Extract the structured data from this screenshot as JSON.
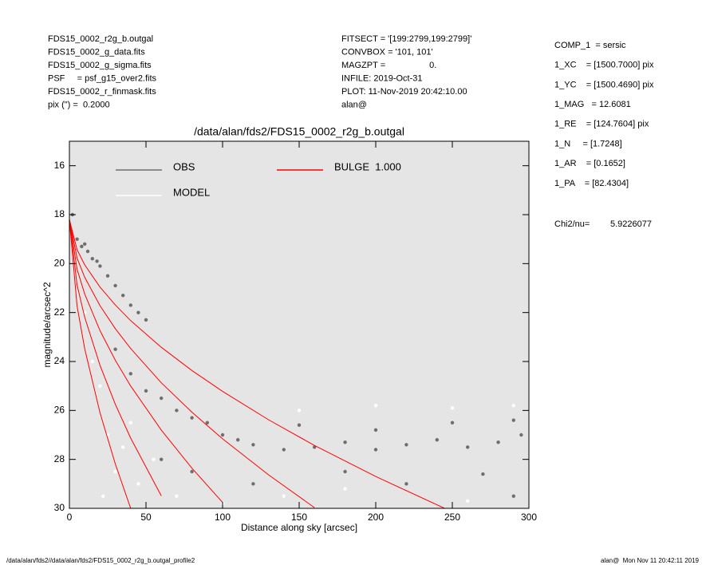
{
  "header": {
    "left": [
      "FDS15_0002_r2g_b.outgal",
      "FDS15_0002_g_data.fits",
      "FDS15_0002_g_sigma.fits",
      "PSF     = psf_g15_over2.fits",
      "FDS15_0002_r_finmask.fits",
      "pix (\") =  0.2000"
    ],
    "middle": [
      "FITSECT = '[199:2799,199:2799]'",
      "CONVBOX = '101, 101'",
      "MAGZPT =                  0.",
      "INFILE: 2019-Oct-31",
      "PLOT: 11-Nov-2019 20:42:10.00",
      "alan@"
    ],
    "right": [
      "COMP_1  = sersic",
      "1_XC    = [1500.7000] pix",
      "1_YC    = [1500.4690] pix",
      "1_MAG   = 12.6081",
      "1_RE    = [124.7604] pix",
      "1_N     = [1.7248]",
      "1_AR    = [0.1652]",
      "1_PA    = [82.4304]"
    ],
    "chi2_label": "Chi2/nu=",
    "chi2_value": "5.9226077"
  },
  "footer": {
    "left": "/data/alan/fds2//data/alan/fds2/FDS15_0002_r2g_b.outgal_profile2",
    "right": "alan@  Mon Nov 11 20:42:11 2019"
  },
  "chart_data": {
    "type": "scatter",
    "title": "/data/alan/fds2/FDS15_0002_r2g_b.outgal",
    "xlabel": "Distance along sky [arcsec]",
    "ylabel": "magnitude/arcsec^2",
    "xlim": [
      0,
      300
    ],
    "xticks": [
      0,
      50,
      100,
      150,
      200,
      250,
      300
    ],
    "ylim": [
      30,
      15
    ],
    "yticks": [
      16,
      18,
      20,
      22,
      24,
      26,
      28,
      30
    ],
    "background": "#e5e5e5",
    "series": [
      {
        "name": "OBS",
        "color": "#6e6e6e",
        "x": [
          2,
          5,
          8,
          10,
          12,
          15,
          18,
          20,
          25,
          30,
          35,
          40,
          45,
          50,
          30,
          40,
          50,
          60,
          70,
          80,
          90,
          100,
          110,
          120,
          140,
          160,
          180,
          200,
          220,
          240,
          260,
          280,
          295,
          150,
          200,
          250,
          290,
          180,
          220,
          270,
          290,
          120,
          80,
          60
        ],
        "values": [
          18.0,
          19.0,
          19.3,
          19.2,
          19.5,
          19.8,
          19.9,
          20.1,
          20.5,
          20.9,
          21.3,
          21.7,
          22.0,
          22.3,
          23.5,
          24.5,
          25.2,
          25.5,
          26.0,
          26.3,
          26.5,
          27.0,
          27.2,
          27.4,
          27.6,
          27.5,
          27.3,
          27.6,
          27.4,
          27.2,
          27.5,
          27.3,
          27.0,
          26.6,
          26.8,
          26.5,
          26.4,
          28.5,
          29.0,
          28.6,
          29.5,
          29.0,
          28.5,
          28.0
        ]
      },
      {
        "name": "MODEL",
        "color": "#ffffff",
        "x": [
          20,
          25,
          30,
          22,
          35,
          40,
          55,
          70,
          100,
          140,
          150,
          200,
          250,
          290,
          180,
          260,
          10,
          15,
          45
        ],
        "values": [
          25,
          27,
          28.5,
          29.5,
          27.5,
          26.5,
          28,
          29.5,
          29.8,
          29.5,
          26.0,
          25.8,
          25.9,
          25.8,
          29.2,
          29.7,
          22,
          24,
          29
        ]
      },
      {
        "name": "BULGE  1.000",
        "color": "#ff0000",
        "curves": [
          {
            "x": [
              0,
              5,
              10,
              20,
              30,
              40,
              60,
              80,
              100,
              130,
              160,
              200,
              245
            ],
            "values": [
              18.2,
              19.43,
              20.05,
              20.96,
              21.69,
              22.33,
              23.42,
              24.37,
              25.22,
              26.38,
              27.43,
              28.7,
              30.0
            ]
          },
          {
            "x": [
              0,
              5,
              10,
              20,
              30,
              40,
              60,
              80,
              100,
              130,
              160
            ],
            "values": [
              18.2,
              19.77,
              20.56,
              21.72,
              22.66,
              23.47,
              24.87,
              26.07,
              27.16,
              28.63,
              29.97
            ]
          },
          {
            "x": [
              0,
              5,
              10,
              20,
              30,
              40,
              60,
              80,
              100
            ],
            "values": [
              18.2,
              20.23,
              21.24,
              22.74,
              23.95,
              25.0,
              26.8,
              28.36,
              29.76
            ]
          },
          {
            "x": [
              0,
              5,
              10,
              20,
              30,
              40,
              60
            ],
            "values": [
              18.2,
              20.87,
              22.19,
              24.16,
              25.75,
              27.13,
              29.49
            ]
          },
          {
            "x": [
              0,
              5,
              10,
              20,
              30,
              40
            ],
            "values": [
              18.2,
              21.73,
              23.48,
              26.1,
              28.19,
              30.0
            ]
          }
        ]
      }
    ]
  }
}
